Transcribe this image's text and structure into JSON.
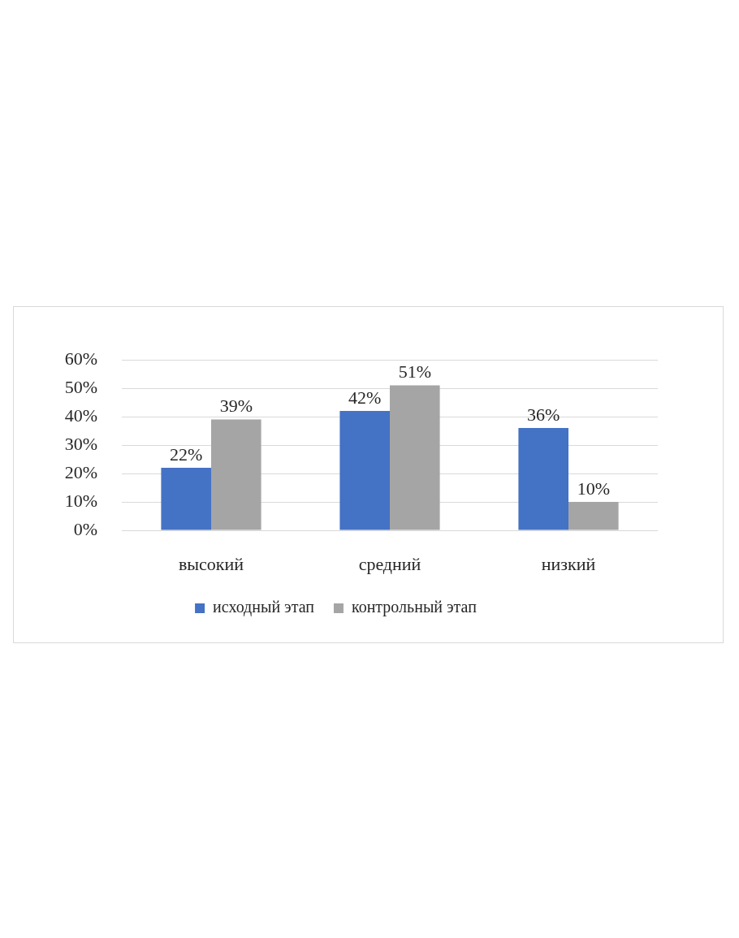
{
  "chart_data": {
    "type": "bar",
    "categories": [
      "высокий",
      "средний",
      "низкий"
    ],
    "series": [
      {
        "name": "исходный этап",
        "color": "#4472c4",
        "values": [
          22,
          42,
          36
        ],
        "value_labels": [
          "22%",
          "42%",
          "36%"
        ]
      },
      {
        "name": "контрольный этап",
        "color": "#a5a5a5",
        "values": [
          39,
          51,
          10
        ],
        "value_labels": [
          "39%",
          "51%",
          "10%"
        ]
      }
    ],
    "ylim": [
      0,
      60
    ],
    "yticks": [
      {
        "value": 0,
        "label": "0%"
      },
      {
        "value": 10,
        "label": "10%"
      },
      {
        "value": 20,
        "label": "20%"
      },
      {
        "value": 30,
        "label": "30%"
      },
      {
        "value": 40,
        "label": "40%"
      },
      {
        "value": 50,
        "label": "50%"
      },
      {
        "value": 60,
        "label": "60%"
      }
    ],
    "grid": "y",
    "legend": "bottom"
  }
}
